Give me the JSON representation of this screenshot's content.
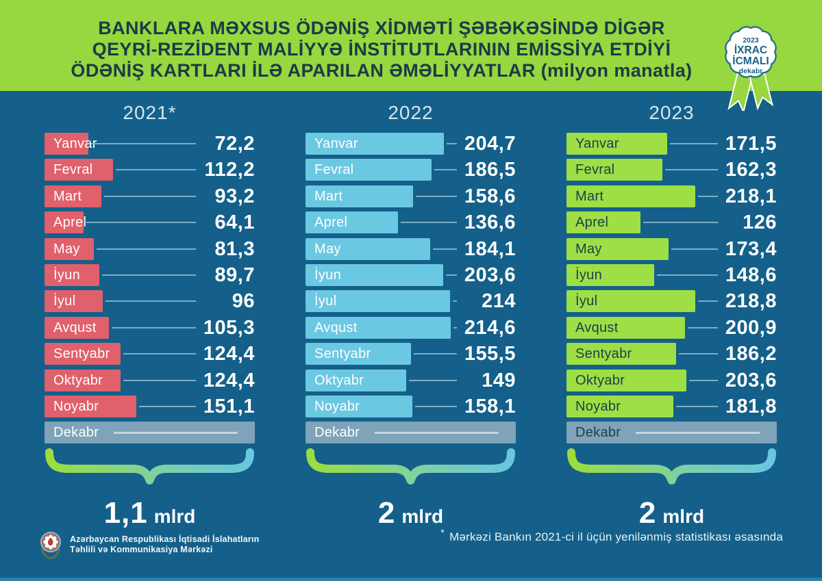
{
  "header": {
    "title_lines": [
      "BANKLARA MƏXSUS ÖDƏNİŞ XİDMƏTİ ŞƏBƏKƏSİNDƏ DİGƏR",
      "QEYRİ-REZİDENT MALİYYƏ İNSTİTUTLARININ EMİSSİYA ETDİYİ",
      "ÖDƏNİŞ KARTLARI İLƏ APARILAN ƏMƏLİYYATLAR (milyon manatla)"
    ],
    "badge": {
      "year": "2023",
      "line1": "İXRAC",
      "line2": "İCMALI",
      "month": "dekabr"
    }
  },
  "chart_data": {
    "type": "bar",
    "orientation": "horizontal",
    "unit_note": "milyon manatla",
    "categories": [
      "Yanvar",
      "Fevral",
      "Mart",
      "Aprel",
      "May",
      "İyun",
      "İyul",
      "Avqust",
      "Sentyabr",
      "Oktyabr",
      "Noyabr",
      "Dekabr"
    ],
    "series": [
      {
        "name": "2021*",
        "bar_color": "#E0606B",
        "label_color": "#FFFFFF",
        "values": [
          72.2,
          112.2,
          93.2,
          64.1,
          81.3,
          89.7,
          96,
          105.3,
          124.4,
          124.4,
          151.1,
          null
        ],
        "display_values": [
          "72,2",
          "112,2",
          "93,2",
          "64,1",
          "81,3",
          "89,7",
          "96",
          "105,3",
          "124,4",
          "124,4",
          "151,1",
          ""
        ],
        "axis_max": 345,
        "total": {
          "number": "1,1",
          "unit": "mlrd"
        }
      },
      {
        "name": "2022",
        "bar_color": "#6BC8E2",
        "label_color": "#FFFFFF",
        "values": [
          204.7,
          186.5,
          158.6,
          136.6,
          184.1,
          203.6,
          214,
          214.6,
          155.5,
          149,
          158.1,
          null
        ],
        "display_values": [
          "204,7",
          "186,5",
          "158,6",
          "136,6",
          "184,1",
          "203,6",
          "214",
          "214,6",
          "155,5",
          "149",
          "158,1",
          ""
        ],
        "axis_max": 311,
        "total": {
          "number": "2",
          "unit": "mlrd"
        }
      },
      {
        "name": "2023",
        "bar_color": "#9EDF45",
        "label_color": "#1D4049",
        "values": [
          171.5,
          162.3,
          218.1,
          126,
          173.4,
          148.6,
          218.8,
          200.9,
          186.2,
          203.6,
          181.8,
          null
        ],
        "display_values": [
          "171,5",
          "162,3",
          "218,1",
          "126",
          "173,4",
          "148,6",
          "218,8",
          "200,9",
          "186,2",
          "203,6",
          "181,8",
          ""
        ],
        "axis_max": 357,
        "total": {
          "number": "2",
          "unit": "mlrd"
        }
      }
    ],
    "december_bar": {
      "color": "#7FA3B8",
      "full_width": true
    },
    "legend_position": "none",
    "grid": false
  },
  "footnote": {
    "marker": "*",
    "text": "Mərkəzi Bankın 2021-ci il üçün yenilənmiş statistikası əsasında"
  },
  "logo": {
    "line1": "Azərbaycan Respublikası İqtisadi İslahatların",
    "line2": "Təhlili və Kommunikasiya Mərkəzi"
  },
  "colors": {
    "background": "#14608A",
    "header_green": "#97D73F",
    "title_text": "#1B3B47",
    "connector_line": "#7FAEC7",
    "brace_gradient": [
      "#9DDC3D",
      "#69C6E0"
    ],
    "bottom_strip": "#2F7FA7"
  }
}
